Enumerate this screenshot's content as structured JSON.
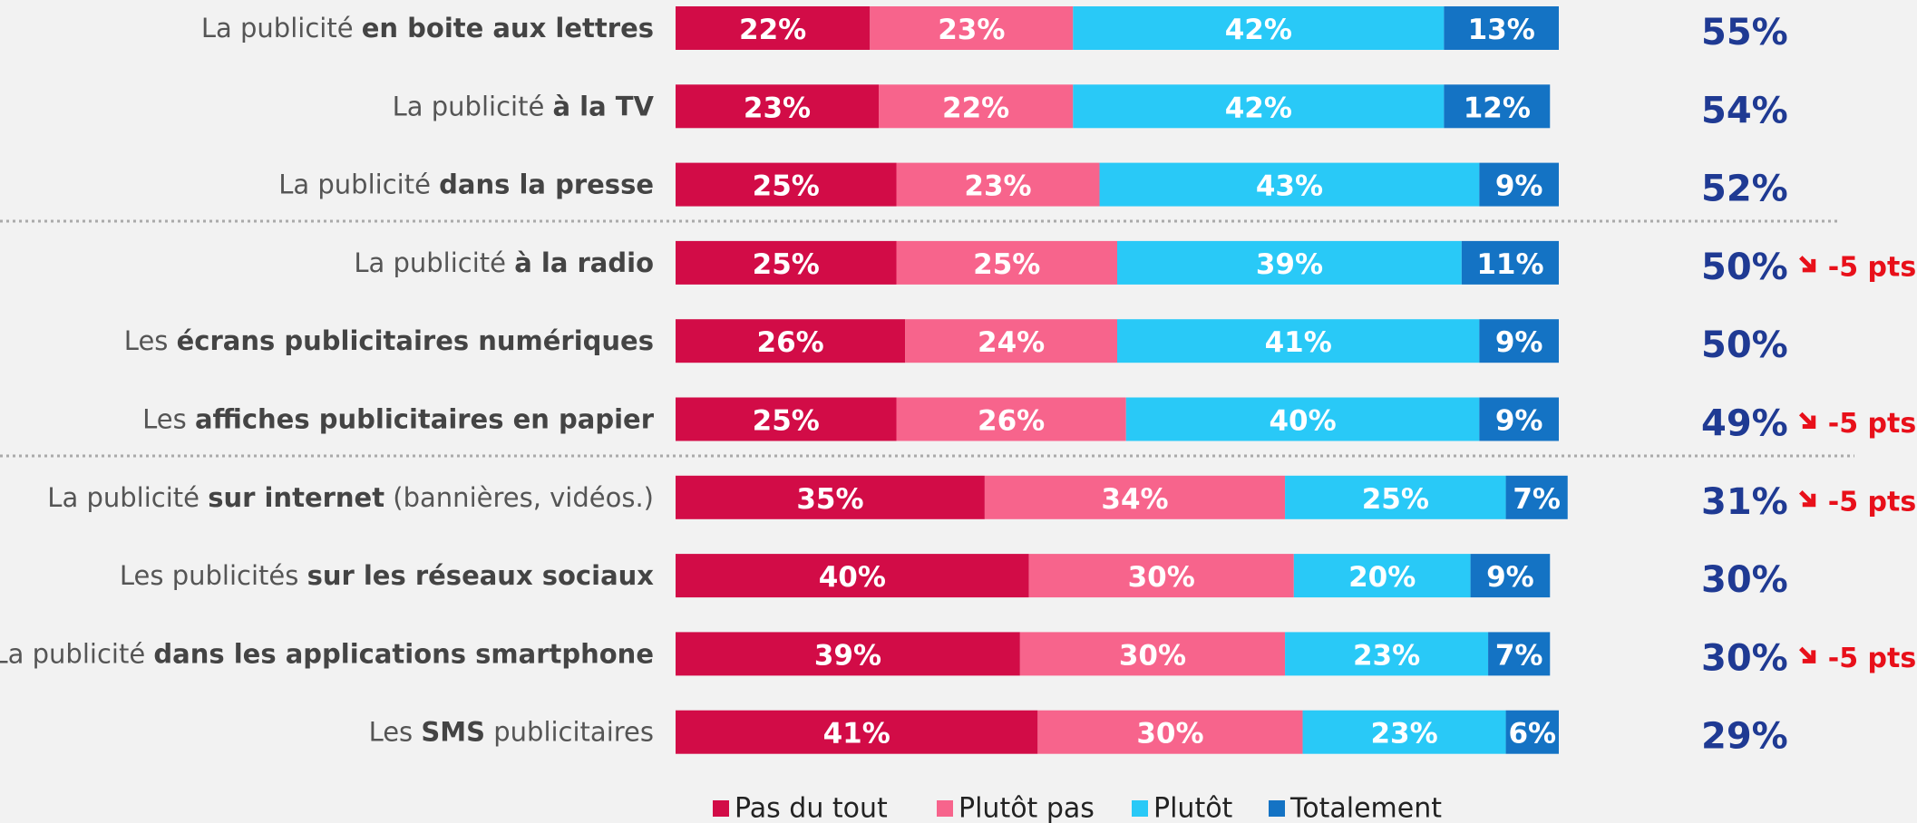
{
  "chart_data": {
    "type": "stacked-bar-horizontal",
    "categories": [
      [
        {
          "text": "La publicité ",
          "bold": false
        },
        {
          "text": "en boite aux lettres",
          "bold": true
        }
      ],
      [
        {
          "text": "La publicité ",
          "bold": false
        },
        {
          "text": "à la TV",
          "bold": true
        }
      ],
      [
        {
          "text": "La publicité ",
          "bold": false
        },
        {
          "text": "dans la presse",
          "bold": true
        }
      ],
      [
        {
          "text": "La publicité ",
          "bold": false
        },
        {
          "text": "à la radio",
          "bold": true
        }
      ],
      [
        {
          "text": "Les ",
          "bold": false
        },
        {
          "text": "écrans publicitaires numériques",
          "bold": true
        }
      ],
      [
        {
          "text": "Les ",
          "bold": false
        },
        {
          "text": "affiches publicitaires en papier",
          "bold": true
        }
      ],
      [
        {
          "text": "La publicité ",
          "bold": false
        },
        {
          "text": "sur internet",
          "bold": true
        },
        {
          "text": " (bannières, vidéos.)",
          "bold": false
        }
      ],
      [
        {
          "text": "Les publicités ",
          "bold": false
        },
        {
          "text": "sur les réseaux sociaux",
          "bold": true
        }
      ],
      [
        {
          "text": "La publicité ",
          "bold": false
        },
        {
          "text": "dans les applications smartphone",
          "bold": true
        }
      ],
      [
        {
          "text": "Les ",
          "bold": false
        },
        {
          "text": "SMS",
          "bold": true
        },
        {
          "text": " publicitaires",
          "bold": false
        }
      ]
    ],
    "xlim": [
      0,
      100
    ],
    "series": [
      {
        "name": "Pas du tout",
        "color": "#d20c47",
        "values": [
          22,
          23,
          25,
          25,
          26,
          25,
          35,
          40,
          39,
          41
        ],
        "value_labels": [
          "22%",
          "23%",
          "25%",
          "25%",
          "26%",
          "25%",
          "35%",
          "40%",
          "39%",
          "41%"
        ]
      },
      {
        "name": "Plutôt pas",
        "color": "#f7648c",
        "values": [
          23,
          22,
          23,
          25,
          24,
          26,
          34,
          30,
          30,
          30
        ],
        "value_labels": [
          "23%",
          "22%",
          "23%",
          "25%",
          "24%",
          "26%",
          "34%",
          "30%",
          "30%",
          "30%"
        ]
      },
      {
        "name": "Plutôt",
        "color": "#29c9f7",
        "values": [
          42,
          42,
          43,
          39,
          41,
          40,
          25,
          20,
          23,
          23
        ],
        "value_labels": [
          "42%",
          "42%",
          "43%",
          "39%",
          "41%",
          "40%",
          "25%",
          "20%",
          "23%",
          "23%"
        ]
      },
      {
        "name": "Totalement",
        "color": "#1473c4",
        "values": [
          13,
          12,
          9,
          11,
          9,
          9,
          7,
          9,
          7,
          6
        ],
        "value_labels": [
          "13%",
          "12%",
          "9%",
          "11%",
          "9%",
          "9%",
          "7%",
          "9%",
          "7%",
          "6%"
        ]
      }
    ],
    "totals": {
      "values": [
        55,
        54,
        52,
        50,
        50,
        49,
        31,
        30,
        30,
        29
      ],
      "value_labels": [
        "55%",
        "54%",
        "52%",
        "50%",
        "50%",
        "49%",
        "31%",
        "30%",
        "30%",
        "29%"
      ]
    },
    "changes": {
      "values": [
        null,
        null,
        null,
        -5,
        null,
        -5,
        -5,
        null,
        -5,
        null
      ],
      "value_labels": [
        null,
        null,
        null,
        "-5 pts",
        null,
        "-5 pts",
        "-5 pts",
        null,
        "-5 pts",
        null
      ]
    }
  }
}
